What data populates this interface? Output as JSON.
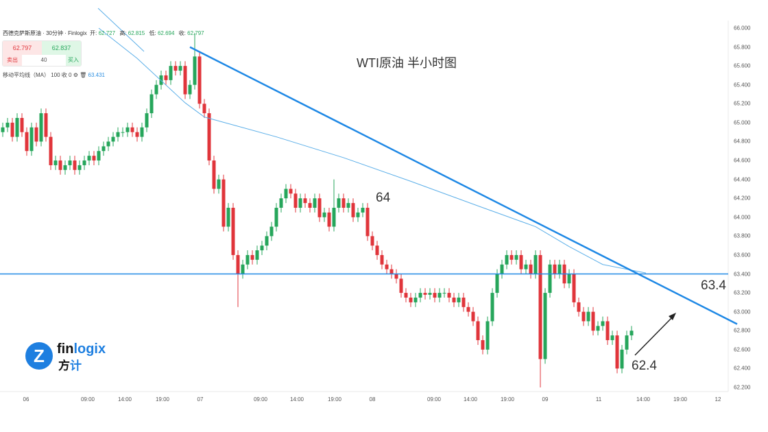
{
  "header": {
    "symbol": "西德克萨斯原油 · 30分钟 · Finlogix",
    "open_label": "开:",
    "open": "62.727",
    "high_label": "高:",
    "high": "62.815",
    "low_label": "低:",
    "low": "62.694",
    "close_label": "收:",
    "close": "62.797"
  },
  "trade": {
    "sell_price": "62.797",
    "buy_price": "62.837",
    "sell_label": "卖出",
    "buy_label": "买入",
    "quantity": "40"
  },
  "indicator": {
    "label": "移动平均线（MA）",
    "params": "100 收 0",
    "value": "63.431"
  },
  "logo": {
    "text_a": "fin",
    "text_b": "logix",
    "cn_a": "方",
    "cn_b": "计"
  },
  "colors": {
    "up": "#26a65b",
    "down": "#e0353b",
    "line": "#1e88e5",
    "ma": "#5aaee8"
  },
  "chart_data": {
    "type": "candlestick",
    "title": "WTI原油 半小时图",
    "ylim": [
      62.2,
      66.0
    ],
    "yticks": [
      "66.000",
      "65.800",
      "65.600",
      "65.400",
      "65.200",
      "65.000",
      "64.800",
      "64.600",
      "64.400",
      "64.200",
      "64.000",
      "63.800",
      "63.600",
      "63.400",
      "63.200",
      "63.000",
      "62.800",
      "62.600",
      "62.400",
      "62.200"
    ],
    "xticks": [
      "06",
      "09:00",
      "14:00",
      "19:00",
      "07",
      "09:00",
      "14:00",
      "19:00",
      "08",
      "09:00",
      "14:00",
      "19:00",
      "09",
      "11",
      "14:00",
      "19:00",
      "12"
    ],
    "first_open": 64.9,
    "closes": [
      64.95,
      65.0,
      64.85,
      65.05,
      64.9,
      64.7,
      64.95,
      64.8,
      65.1,
      64.85,
      64.55,
      64.6,
      64.5,
      64.55,
      64.6,
      64.5,
      64.55,
      64.6,
      64.65,
      64.6,
      64.7,
      64.75,
      64.8,
      64.85,
      64.9,
      64.9,
      64.95,
      64.9,
      64.85,
      64.95,
      65.1,
      65.3,
      65.4,
      65.5,
      65.45,
      65.6,
      65.55,
      65.6,
      65.3,
      65.4,
      65.7,
      65.2,
      65.1,
      64.6,
      64.3,
      64.4,
      63.9,
      64.1,
      63.6,
      63.4,
      63.5,
      63.6,
      63.55,
      63.65,
      63.7,
      63.8,
      63.9,
      64.1,
      64.2,
      64.3,
      64.25,
      64.1,
      64.2,
      64.15,
      64.1,
      64.2,
      64.0,
      64.05,
      63.9,
      64.1,
      64.2,
      64.1,
      64.15,
      64.0,
      64.05,
      64.1,
      63.8,
      63.7,
      63.6,
      63.5,
      63.45,
      63.4,
      63.35,
      63.2,
      63.15,
      63.1,
      63.15,
      63.2,
      63.18,
      63.2,
      63.15,
      63.2,
      63.2,
      63.15,
      63.1,
      63.15,
      63.05,
      63.0,
      62.9,
      62.7,
      62.6,
      62.9,
      63.2,
      63.4,
      63.5,
      63.6,
      63.55,
      63.6,
      63.45,
      63.5,
      63.4,
      63.6,
      62.5,
      63.2,
      63.5,
      63.4,
      63.5,
      63.3,
      63.4,
      63.1,
      63.0,
      62.9,
      63.0,
      62.8,
      62.85,
      62.9,
      62.7,
      62.75,
      62.4,
      62.6,
      62.75,
      62.8
    ],
    "special_wicks": [
      {
        "i": 40,
        "high": 65.95
      },
      {
        "i": 49,
        "low": 63.05
      },
      {
        "i": 69,
        "high": 64.4
      },
      {
        "i": 112,
        "low": 62.2
      }
    ],
    "ma100": [
      [
        20,
        66.0
      ],
      [
        28,
        65.68
      ],
      [
        38,
        65.21
      ],
      [
        42,
        65.06
      ],
      [
        57,
        64.85
      ],
      [
        71,
        64.63
      ],
      [
        85,
        64.38
      ],
      [
        99,
        64.12
      ],
      [
        111,
        63.9
      ],
      [
        118,
        63.69
      ],
      [
        125,
        63.5
      ],
      [
        134,
        63.41
      ]
    ],
    "horizontal_level": 63.4,
    "trendline": [
      [
        39,
        65.8
      ],
      [
        153,
        62.87
      ]
    ],
    "annotations": [
      "64",
      "63.4",
      "62.4"
    ]
  }
}
